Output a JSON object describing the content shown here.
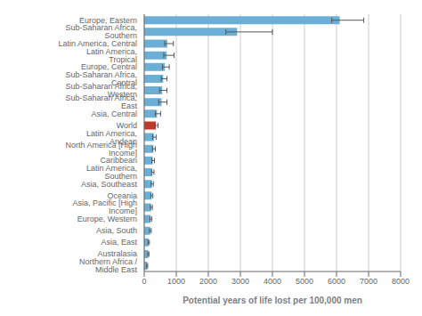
{
  "chart_data": {
    "type": "bar",
    "orientation": "horizontal",
    "xlabel": "Potential years of life lost per 100,000 men",
    "categories": [
      "Europe, Eastern",
      "Sub-Saharan Africa, Southern",
      "Latin America, Central",
      "Latin America, Tropical",
      "Europe, Central",
      "Sub-Saharan Africa, Central",
      "Sub-Saharan Africa, Western",
      "Sub-Saharan Africa, East",
      "Asia, Central",
      "World",
      "Latin America, Andean",
      "North America [High Income]",
      "Caribbean",
      "Latin America, Southern",
      "Asia, Southeast",
      "Oceania",
      "Asia, Pacific [High Income]",
      "Europe, Western",
      "Asia, South",
      "Asia, East",
      "Australasia",
      "Northern Africa / Middle East"
    ],
    "values": [
      6100,
      2900,
      720,
      700,
      640,
      590,
      560,
      540,
      400,
      360,
      300,
      285,
      265,
      255,
      240,
      230,
      215,
      200,
      185,
      135,
      125,
      90
    ],
    "error_low": [
      250,
      350,
      80,
      90,
      70,
      60,
      80,
      90,
      55,
      35,
      35,
      30,
      28,
      25,
      25,
      22,
      22,
      20,
      20,
      18,
      15,
      12
    ],
    "error_high": [
      750,
      1100,
      190,
      230,
      140,
      120,
      150,
      170,
      110,
      70,
      70,
      60,
      55,
      50,
      45,
      40,
      40,
      35,
      35,
      25,
      23,
      18
    ],
    "colors": [
      "#6baed6",
      "#6baed6",
      "#6baed6",
      "#6baed6",
      "#6baed6",
      "#6baed6",
      "#6baed6",
      "#6baed6",
      "#6baed6",
      "#c0392b",
      "#6baed6",
      "#6baed6",
      "#6baed6",
      "#6baed6",
      "#6baed6",
      "#6baed6",
      "#6baed6",
      "#6baed6",
      "#6baed6",
      "#6baed6",
      "#6baed6",
      "#6baed6"
    ],
    "xlim": [
      0,
      8000
    ],
    "xticks": [
      0,
      1000,
      2000,
      3000,
      4000,
      5000,
      6000,
      7000,
      8000
    ],
    "grid": true
  }
}
